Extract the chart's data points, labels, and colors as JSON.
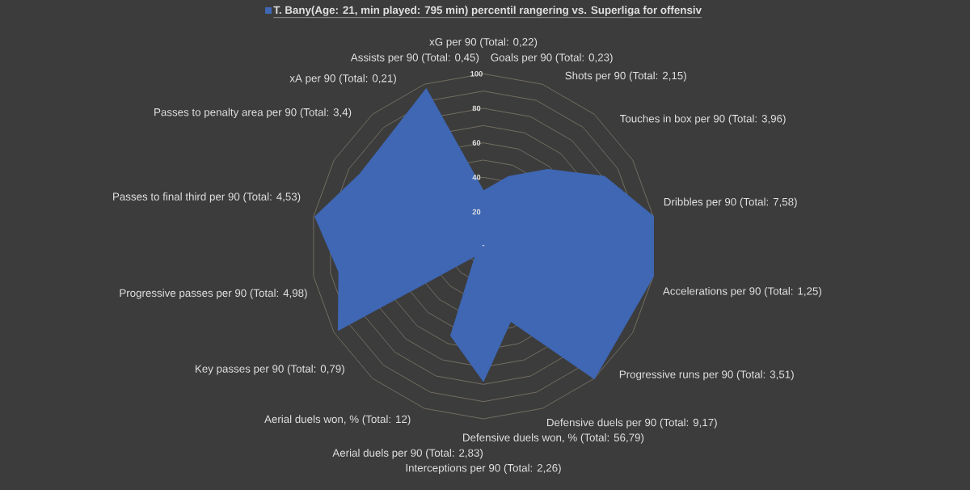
{
  "chart_data": {
    "type": "radar",
    "categories": [
      "xG per 90 (Total: 0,22)",
      "Goals per 90 (Total: 0,23)",
      "Shots per 90 (Total: 2,15)",
      "Touches in box per 90 (Total: 3,96)",
      "Dribbles per 90 (Total: 7,58)",
      "Accelerations per 90 (Total: 1,25)",
      "Progressive runs per 90 (Total: 3,51)",
      "Defensive duels per 90 (Total: 9,17)",
      "Defensive duels won, % (Total: 56,79)",
      "Interceptions per 90 (Total: 2,26)",
      "Aerial duels per 90 (Total: 2,83)",
      "Aerial duels won, % (Total: 12)",
      "Key passes per 90 (Total: 0,79)",
      "Progressive passes per 90 (Total: 4,98)",
      "Passes to final third per 90 (Total: 4,53)",
      "Passes to penalty area per 90 (Total: 3,4)",
      "xA per 90 (Total: 0,21)",
      "Assists per 90 (Total: 0,45)"
    ],
    "series": [
      {
        "name": "T. Bany(Age: 21, min played: 795 min) percentil rangering vs. Superliga for offensiv",
        "color": "#3f67b4",
        "values": [
          32,
          43,
          58,
          81,
          100,
          100,
          94,
          100,
          46,
          78,
          55,
          7,
          97,
          85,
          99,
          83,
          84,
          97
        ]
      }
    ],
    "ylim": [
      0,
      100
    ],
    "yticks": [
      {
        "value": 0,
        "label": "-"
      },
      20,
      40,
      60,
      80,
      100
    ],
    "grid": true,
    "legend": "top"
  }
}
